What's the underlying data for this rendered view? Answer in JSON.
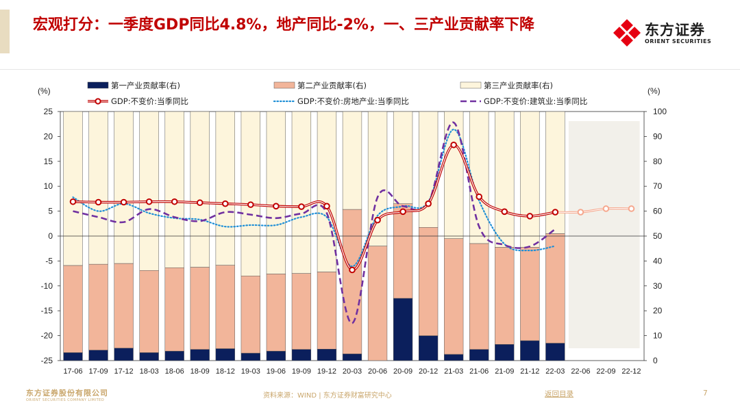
{
  "slide": {
    "title": "宏观打分：一季度GDP同比4.8%，地产同比-2%，一、三产业贡献率下降",
    "logo_cn": "东方证券",
    "logo_en": "ORIENT SECURITIES",
    "footer_logo_cn": "东方证券股份有限公司",
    "footer_logo_en": "ORIENT SECURITIES COMPANY LIMITED",
    "source": "资料来源：WIND | 东方证券财富研究中心",
    "toc_link": "返回目录",
    "page_number": "7"
  },
  "colors": {
    "title": "#c00000",
    "primary": "#0b1f5c",
    "secondary": "#f2b59a",
    "tertiary": "#fdf5dc",
    "gdp": "#c00000",
    "realestate": "#1f8fd6",
    "construction": "#7030a0",
    "forecast": "#f6a78d",
    "forecast_bg": "#f2f0ea"
  },
  "chart_data": {
    "type": "bar",
    "categories": [
      "17-06",
      "17-09",
      "17-12",
      "18-03",
      "18-06",
      "18-09",
      "18-12",
      "19-03",
      "19-06",
      "19-09",
      "19-12",
      "20-03",
      "20-06",
      "20-09",
      "20-12",
      "21-03",
      "21-06",
      "21-09",
      "21-12",
      "22-03",
      "22-06",
      "22-09",
      "22-12"
    ],
    "left_axis": {
      "label": "(%)",
      "range": [
        -25,
        25
      ],
      "ticks": [
        -25,
        -20,
        -15,
        -10,
        -5,
        0,
        5,
        10,
        15,
        20,
        25
      ]
    },
    "right_axis": {
      "label": "(%)",
      "range": [
        0,
        100
      ],
      "ticks": [
        0,
        10,
        20,
        30,
        40,
        50,
        60,
        70,
        80,
        90,
        100
      ]
    },
    "legend": [
      "第一产业贡献率(右)",
      "第二产业贡献率(右)",
      "第三产业贡献率(右)",
      "GDP:不变价:当季同比",
      "GDP:不变价:房地产业:当季同比",
      "GDP:不变价:建筑业:当季同比"
    ],
    "bar_series": [
      {
        "name": "第一产业贡献率(右)",
        "values": [
          3.2,
          4.2,
          5.0,
          3.2,
          3.8,
          4.5,
          4.8,
          3.0,
          3.8,
          4.5,
          4.6,
          2.7,
          0.0,
          25.0,
          10.0,
          2.5,
          4.5,
          6.5,
          8.0,
          7.0,
          null,
          null,
          null
        ]
      },
      {
        "name": "第二产业贡献率(右)",
        "values": [
          35.0,
          34.5,
          34.0,
          33.0,
          33.5,
          33.0,
          33.5,
          31.0,
          31.0,
          30.5,
          31.0,
          58.0,
          46.0,
          38.0,
          43.5,
          46.5,
          42.5,
          39.0,
          37.5,
          44.0,
          null,
          null,
          null
        ]
      },
      {
        "name": "第三产业贡献率(右)",
        "values": [
          61.8,
          61.3,
          61.0,
          63.8,
          62.7,
          62.5,
          61.7,
          66.0,
          65.2,
          65.0,
          64.4,
          39.3,
          54.0,
          37.0,
          46.5,
          51.0,
          53.0,
          54.5,
          54.5,
          49.0,
          null,
          null,
          null
        ]
      }
    ],
    "line_series": [
      {
        "name": "GDP:不变价:当季同比",
        "axis": "left",
        "values": [
          6.9,
          6.8,
          6.8,
          6.9,
          6.9,
          6.7,
          6.5,
          6.3,
          6.0,
          5.9,
          6.0,
          -6.8,
          3.2,
          4.9,
          6.5,
          18.3,
          7.9,
          4.9,
          4.0,
          4.8,
          4.8,
          5.5,
          5.5
        ],
        "forecast_from": 20
      },
      {
        "name": "GDP:不变价:房地产业:当季同比",
        "axis": "left",
        "values": [
          7.8,
          5.0,
          6.5,
          4.6,
          3.6,
          3.3,
          1.9,
          2.2,
          2.2,
          3.8,
          3.8,
          -6.1,
          4.1,
          6.0,
          6.9,
          21.4,
          7.1,
          -1.6,
          -2.9,
          -2.0
        ]
      },
      {
        "name": "GDP:不变价:建筑业:当季同比",
        "axis": "left",
        "values": [
          5.0,
          3.8,
          2.8,
          5.4,
          3.8,
          3.0,
          4.8,
          4.3,
          3.6,
          4.5,
          4.6,
          -17.5,
          7.8,
          6.0,
          6.7,
          22.8,
          1.9,
          -1.8,
          -2.1,
          1.4
        ]
      }
    ]
  }
}
